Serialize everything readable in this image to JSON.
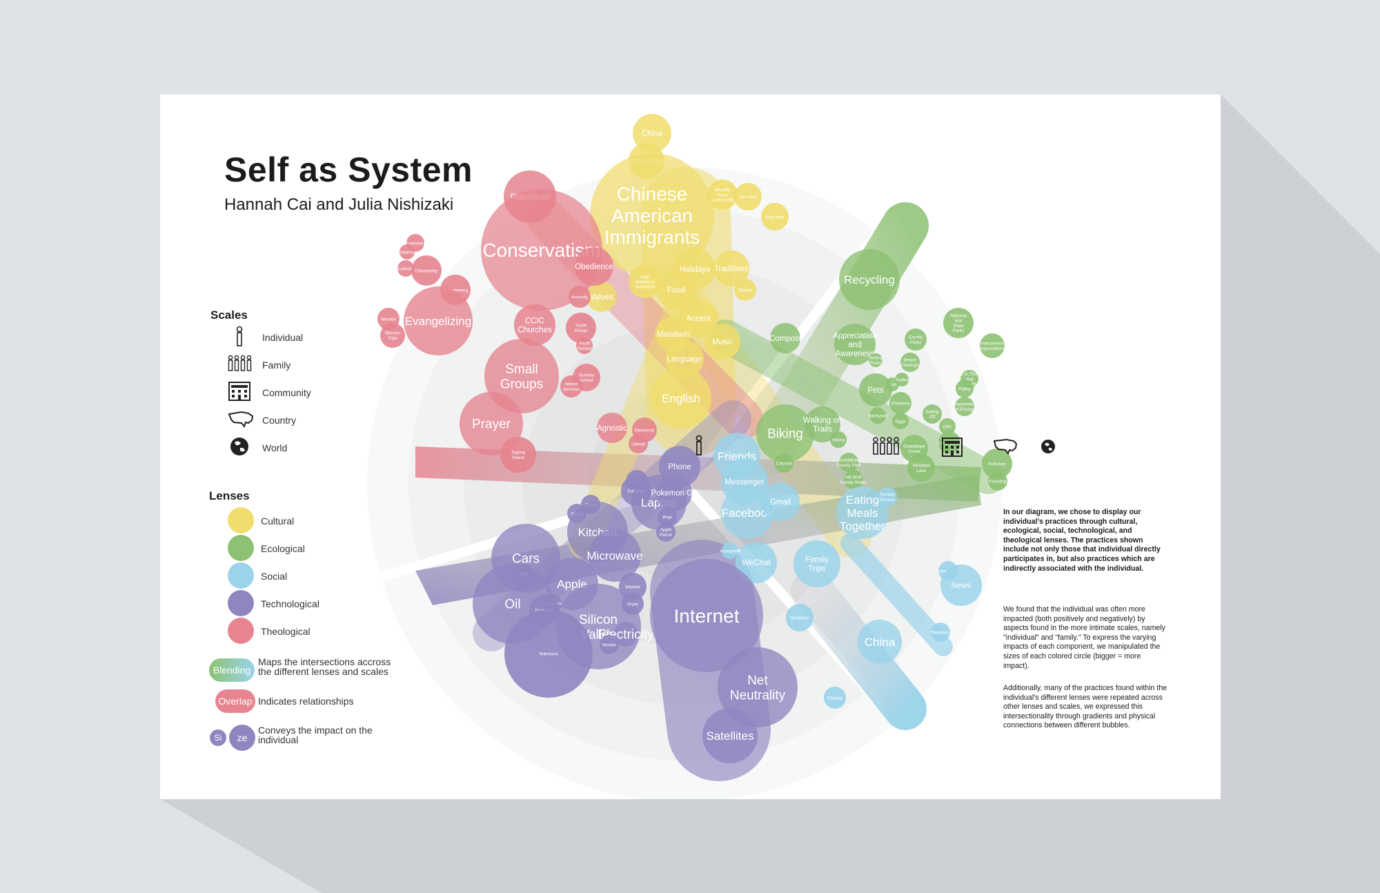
{
  "header": {
    "title": "Self as System",
    "authors": "Hannah Cai and Julia Nishizaki"
  },
  "colors": {
    "background": "#dfe3e6",
    "cultural": "#f0dd6c",
    "ecological": "#8dc173",
    "social": "#9ad3ea",
    "technological": "#8f86c0",
    "theological": "#e6848f"
  },
  "scales": {
    "heading": "Scales",
    "items": [
      {
        "label": "Individual",
        "icon": "person-icon"
      },
      {
        "label": "Family",
        "icon": "family-icon"
      },
      {
        "label": "Community",
        "icon": "building-icon"
      },
      {
        "label": "Country",
        "icon": "usa-map-icon"
      },
      {
        "label": "World",
        "icon": "globe-icon"
      }
    ]
  },
  "lenses": {
    "heading": "Lenses",
    "items": [
      {
        "label": "Cultural",
        "color": "#f0dd6c"
      },
      {
        "label": "Ecological",
        "color": "#8dc173"
      },
      {
        "label": "Social",
        "color": "#9ad3ea"
      },
      {
        "label": "Technological",
        "color": "#8f86c0"
      },
      {
        "label": "Theological",
        "color": "#e6848f"
      }
    ]
  },
  "keys": {
    "blending_pill": "Blending",
    "blending_text": "Maps the intersections accross the different lenses and scales",
    "overlap_pill": "Overlap",
    "overlap_text": "Indicates relationships",
    "size_small": "Si",
    "size_large": "ze",
    "size_text": "Conveys the impact on the individual"
  },
  "description": {
    "p1": "In our diagram, we chose to display our individual's practices through cultural, ecological, social, technological, and theological lenses. The practices shown include not only those that individual directly participates in, but also practices which are indirectly associated with the individual.",
    "p2": "We found that the individual was often more impacted (both positively and negatively) by aspects found in the more intimate scales, namely \"individual\" and \"family.\" To express the varying impacts of each component, we manipulated the sizes of each colored circle (bigger = more impact).",
    "p3": "Additionally, many of the practices found within the individual's different lenses were repeated across other lenses and scales, we expressed this intersectionality through gradients and physical connections between different bubbles."
  },
  "diagram": {
    "bubbles": [
      {
        "label": "China",
        "lens": "cultural",
        "size": "s"
      },
      {
        "label": "North America",
        "lens": "cultural",
        "size": "s"
      },
      {
        "label": "Chinese American Immigrants",
        "lens": "cultural",
        "size": "xl"
      },
      {
        "label": "Majority Asian Community",
        "lens": "cultural",
        "size": "xs"
      },
      {
        "label": "San Jose",
        "lens": "cultural",
        "size": "xs"
      },
      {
        "label": "Bay Area",
        "lens": "cultural",
        "size": "xs"
      },
      {
        "label": "Holidays",
        "lens": "cultural",
        "size": "s"
      },
      {
        "label": "Traditions",
        "lens": "cultural",
        "size": "s"
      },
      {
        "label": "Stories",
        "lens": "cultural",
        "size": "xs"
      },
      {
        "label": "High Academic Standards",
        "lens": "cultural",
        "size": "xs"
      },
      {
        "label": "Food",
        "lens": "cultural",
        "size": "s"
      },
      {
        "label": "Accent",
        "lens": "cultural",
        "size": "s"
      },
      {
        "label": "Mandarin",
        "lens": "cultural",
        "size": "s"
      },
      {
        "label": "Music",
        "lens": "cultural",
        "size": "s"
      },
      {
        "label": "Language",
        "lens": "cultural",
        "size": "s"
      },
      {
        "label": "English",
        "lens": "cultural",
        "size": "m"
      },
      {
        "label": "Values",
        "lens": "cultural",
        "size": "s"
      },
      {
        "label": "Republican",
        "lens": "theological",
        "size": "s"
      },
      {
        "label": "Conservatism",
        "lens": "theological",
        "size": "xl"
      },
      {
        "label": "Obedience",
        "lens": "theological",
        "size": "s"
      },
      {
        "label": "Protestant",
        "lens": "theological",
        "size": "xs"
      },
      {
        "label": "Islamic",
        "lens": "theological",
        "size": "xs"
      },
      {
        "label": "Catholic",
        "lens": "theological",
        "size": "xs"
      },
      {
        "label": "Christianity",
        "lens": "theological",
        "size": "xs"
      },
      {
        "label": "Volunteering",
        "lens": "theological",
        "size": "xs"
      },
      {
        "label": "Evangelizing",
        "lens": "theological",
        "size": "m"
      },
      {
        "label": "Mission",
        "lens": "theological",
        "size": "xs"
      },
      {
        "label": "Mission Trips",
        "lens": "theological",
        "size": "xs"
      },
      {
        "label": "Honesty",
        "lens": "theological",
        "size": "xs"
      },
      {
        "label": "CCIC Churches",
        "lens": "theological",
        "size": "s"
      },
      {
        "label": "Youth Group",
        "lens": "theological",
        "size": "xs"
      },
      {
        "label": "Youth Retreat",
        "lens": "theological",
        "size": "xs"
      },
      {
        "label": "Small Groups",
        "lens": "theological",
        "size": "l"
      },
      {
        "label": "Prayer",
        "lens": "theological",
        "size": "l"
      },
      {
        "label": "Sunday School",
        "lens": "theological",
        "size": "xs"
      },
      {
        "label": "Attend Services",
        "lens": "theological",
        "size": "xs"
      },
      {
        "label": "Agnostic",
        "lens": "theological",
        "size": "s"
      },
      {
        "label": "Democrat",
        "lens": "theological",
        "size": "xs"
      },
      {
        "label": "Liberal",
        "lens": "theological",
        "size": "xs"
      },
      {
        "label": "Saying Grace",
        "lens": "theological",
        "size": "xs"
      },
      {
        "label": "Recycling",
        "lens": "ecological",
        "size": "m"
      },
      {
        "label": "Compost",
        "lens": "ecological",
        "size": "s"
      },
      {
        "label": "National and State Parks",
        "lens": "ecological",
        "size": "xs"
      },
      {
        "label": "Environmental Organizations",
        "lens": "ecological",
        "size": "xs"
      },
      {
        "label": "Appreciation and Awareness",
        "lens": "ecological",
        "size": "s"
      },
      {
        "label": "County Parks",
        "lens": "ecological",
        "size": "xs"
      },
      {
        "label": "Beach Cleanups",
        "lens": "ecological",
        "size": "xs"
      },
      {
        "label": "Visiting Parks",
        "lens": "ecological",
        "size": "xs"
      },
      {
        "label": "Fish",
        "lens": "ecological",
        "size": "xs"
      },
      {
        "label": "Turtles",
        "lens": "ecological",
        "size": "xs"
      },
      {
        "label": "U.S. Fish and Wildlife",
        "lens": "ecological",
        "size": "xs"
      },
      {
        "label": "Policy",
        "lens": "ecological",
        "size": "xs"
      },
      {
        "label": "Department of Energy",
        "lens": "ecological",
        "size": "xs"
      },
      {
        "label": "Pets",
        "lens": "ecological",
        "size": "s"
      },
      {
        "label": "Chickens",
        "lens": "ecological",
        "size": "xs"
      },
      {
        "label": "Backyard",
        "lens": "ecological",
        "size": "xs"
      },
      {
        "label": "Eggs",
        "lens": "ecological",
        "size": "xs"
      },
      {
        "label": "Eating Off",
        "lens": "ecological",
        "size": "xs"
      },
      {
        "label": "EPA",
        "lens": "ecological",
        "size": "xs"
      },
      {
        "label": "Lake Tahoe",
        "lens": "ecological",
        "size": "xs"
      },
      {
        "label": "Biking",
        "lens": "ecological",
        "size": "l"
      },
      {
        "label": "Walking on Trails",
        "lens": "ecological",
        "size": "s"
      },
      {
        "label": "Hiking",
        "lens": "ecological",
        "size": "xs"
      },
      {
        "label": "Guadalupe Creek",
        "lens": "ecological",
        "size": "xs"
      },
      {
        "label": "Carpool",
        "lens": "ecological",
        "size": "xs"
      },
      {
        "label": "Guadalupe County Park",
        "lens": "ecological",
        "size": "xs"
      },
      {
        "label": "Hill Bluff Family Walks",
        "lens": "ecological",
        "size": "xs"
      },
      {
        "label": "Almaden Lake",
        "lens": "ecological",
        "size": "xs"
      },
      {
        "label": "Pollution",
        "lens": "ecological",
        "size": "xs"
      },
      {
        "label": "Fracking",
        "lens": "ecological",
        "size": "xs"
      },
      {
        "label": "Friends",
        "lens": "social",
        "size": "m"
      },
      {
        "label": "Messenger",
        "lens": "social",
        "size": "s"
      },
      {
        "label": "Facebook",
        "lens": "social",
        "size": "m"
      },
      {
        "label": "Gmail",
        "lens": "social",
        "size": "s"
      },
      {
        "label": "Eating Meals Together",
        "lens": "social",
        "size": "m"
      },
      {
        "label": "Sunday Dinners",
        "lens": "social",
        "size": "xs"
      },
      {
        "label": "WeChat",
        "lens": "social",
        "size": "s"
      },
      {
        "label": "Instagram",
        "lens": "social",
        "size": "xs"
      },
      {
        "label": "Family Trips",
        "lens": "social",
        "size": "s"
      },
      {
        "label": "Newspapers",
        "lens": "social",
        "size": "xs"
      },
      {
        "label": "News",
        "lens": "social",
        "size": "s"
      },
      {
        "label": "NextDoor",
        "lens": "social",
        "size": "xs"
      },
      {
        "label": "Relatives",
        "lens": "social",
        "size": "xs"
      },
      {
        "label": "China",
        "lens": "social",
        "size": "m"
      },
      {
        "label": "Canada",
        "lens": "social",
        "size": "xs"
      },
      {
        "label": "Phone",
        "lens": "technological",
        "size": "s"
      },
      {
        "label": "mp3",
        "lens": "technological",
        "size": "xs"
      },
      {
        "label": "Earbuds",
        "lens": "technological",
        "size": "xs"
      },
      {
        "label": "Laptop",
        "lens": "technological",
        "size": "m"
      },
      {
        "label": "Pokemon Go",
        "lens": "technological",
        "size": "s"
      },
      {
        "label": "iPad",
        "lens": "technological",
        "size": "xs"
      },
      {
        "label": "Apple Pencil",
        "lens": "technological",
        "size": "xs"
      },
      {
        "label": "Oven",
        "lens": "technological",
        "size": "xs"
      },
      {
        "label": "Stove",
        "lens": "technological",
        "size": "xs"
      },
      {
        "label": "Kitchen",
        "lens": "technological",
        "size": "m"
      },
      {
        "label": "Microwave",
        "lens": "technological",
        "size": "m"
      },
      {
        "label": "Cars",
        "lens": "technological",
        "size": "l"
      },
      {
        "label": "Gas",
        "lens": "technological",
        "size": "xs"
      },
      {
        "label": "Apple",
        "lens": "technological",
        "size": "m"
      },
      {
        "label": "Oil",
        "lens": "technological",
        "size": "l"
      },
      {
        "label": "Industries",
        "lens": "technological",
        "size": "xs"
      },
      {
        "label": "Factories",
        "lens": "technological",
        "size": "xs"
      },
      {
        "label": "Silicon Valley",
        "lens": "technological",
        "size": "l"
      },
      {
        "label": "Washer",
        "lens": "technological",
        "size": "xs"
      },
      {
        "label": "Dryer",
        "lens": "technological",
        "size": "xs"
      },
      {
        "label": "Electricity",
        "lens": "technological",
        "size": "l"
      },
      {
        "label": "Movies",
        "lens": "technological",
        "size": "xs"
      },
      {
        "label": "Television",
        "lens": "technological",
        "size": "xs"
      },
      {
        "label": "Internet",
        "lens": "technological",
        "size": "xl"
      },
      {
        "label": "Net Neutrality",
        "lens": "technological",
        "size": "l"
      },
      {
        "label": "Satellites",
        "lens": "technological",
        "size": "m"
      }
    ]
  }
}
